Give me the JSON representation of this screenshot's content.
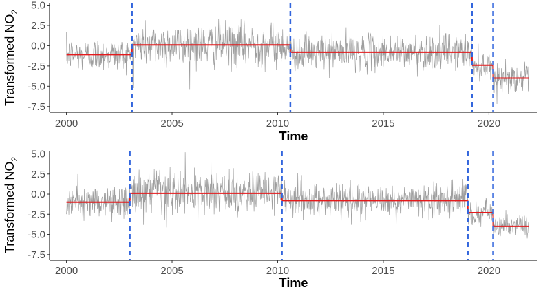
{
  "chart_data": [
    {
      "type": "line",
      "xlabel": "Time",
      "ylabel": "Transformed NO",
      "ylabel_subscript": "2",
      "xlim": [
        1999.2,
        2022.3
      ],
      "ylim": [
        -8.2,
        5.3
      ],
      "x_ticks": [
        2000,
        2005,
        2010,
        2015,
        2020
      ],
      "x_tick_labels": [
        "2000",
        "2005",
        "2010",
        "2015",
        "2020"
      ],
      "y_ticks": [
        5,
        2.5,
        0,
        -2.5,
        -5,
        -7.5
      ],
      "y_tick_labels": [
        "5.0",
        "2.5",
        "0.0",
        "-2.5",
        "-5.0",
        "-7.5"
      ],
      "grid": false,
      "series": [
        {
          "kind": "noisy_daily_series",
          "color": "#999999",
          "segments": [
            {
              "start": 2000.0,
              "end": 2003.1,
              "mean": -1.1,
              "spread": 1.8
            },
            {
              "start": 2003.1,
              "end": 2010.6,
              "mean": 0.1,
              "spread": 2.4
            },
            {
              "start": 2010.6,
              "end": 2019.2,
              "mean": -0.8,
              "spread": 2.0
            },
            {
              "start": 2019.2,
              "end": 2020.2,
              "mean": -2.4,
              "spread": 1.6
            },
            {
              "start": 2020.2,
              "end": 2021.9,
              "mean": -4.0,
              "spread": 1.5
            }
          ]
        },
        {
          "kind": "step_mean",
          "color": "#e41a1c",
          "steps": [
            {
              "x0": 2000.0,
              "x1": 2003.1,
              "y": -1.1
            },
            {
              "x0": 2003.1,
              "x1": 2010.6,
              "y": 0.1
            },
            {
              "x0": 2010.6,
              "x1": 2019.2,
              "y": -0.8
            },
            {
              "x0": 2019.2,
              "x1": 2020.2,
              "y": -2.4
            },
            {
              "x0": 2020.2,
              "x1": 2021.9,
              "y": -4.0
            }
          ]
        }
      ],
      "changepoints": [
        2003.1,
        2010.6,
        2019.2,
        2020.2
      ],
      "changepoint_color": "#3366dd"
    },
    {
      "type": "line",
      "xlabel": "Time",
      "ylabel": "Transformed NO",
      "ylabel_subscript": "2",
      "xlim": [
        1999.2,
        2022.3
      ],
      "ylim": [
        -8.2,
        5.3
      ],
      "x_ticks": [
        2000,
        2005,
        2010,
        2015,
        2020
      ],
      "x_tick_labels": [
        "2000",
        "2005",
        "2010",
        "2015",
        "2020"
      ],
      "y_ticks": [
        5,
        2.5,
        0,
        -2.5,
        -5,
        -7.5
      ],
      "y_tick_labels": [
        "5.0",
        "2.5",
        "0.0",
        "-2.5",
        "-5.0",
        "-7.5"
      ],
      "grid": false,
      "series": [
        {
          "kind": "noisy_daily_series",
          "color": "#999999",
          "segments": [
            {
              "start": 2000.0,
              "end": 2003.0,
              "mean": -1.0,
              "spread": 1.8
            },
            {
              "start": 2003.0,
              "end": 2010.2,
              "mean": 0.1,
              "spread": 2.4
            },
            {
              "start": 2010.2,
              "end": 2019.0,
              "mean": -0.8,
              "spread": 2.0
            },
            {
              "start": 2019.0,
              "end": 2020.2,
              "mean": -2.3,
              "spread": 1.6
            },
            {
              "start": 2020.2,
              "end": 2021.9,
              "mean": -4.0,
              "spread": 1.5
            }
          ]
        },
        {
          "kind": "step_mean",
          "color": "#e41a1c",
          "steps": [
            {
              "x0": 2000.0,
              "x1": 2003.0,
              "y": -1.0
            },
            {
              "x0": 2003.0,
              "x1": 2010.2,
              "y": 0.1
            },
            {
              "x0": 2010.2,
              "x1": 2019.0,
              "y": -0.8
            },
            {
              "x0": 2019.0,
              "x1": 2020.2,
              "y": -2.3
            },
            {
              "x0": 2020.2,
              "x1": 2021.9,
              "y": -4.0
            }
          ]
        }
      ],
      "changepoints": [
        2003.0,
        2010.2,
        2019.0,
        2020.2
      ],
      "changepoint_color": "#3366dd"
    }
  ]
}
